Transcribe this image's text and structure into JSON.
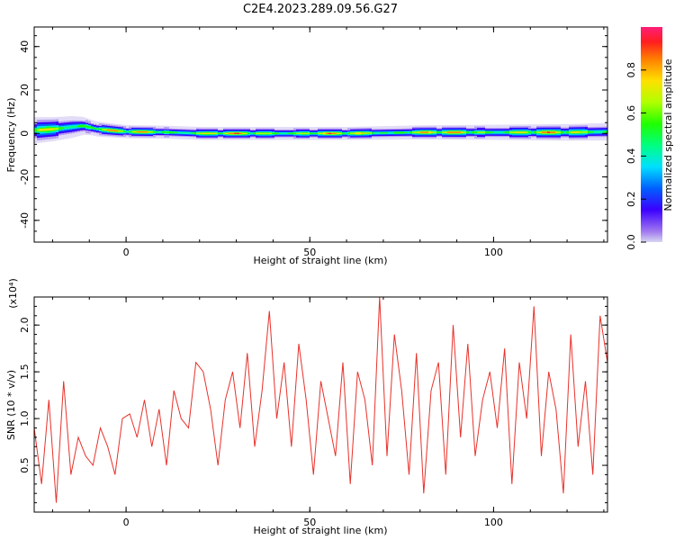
{
  "title": "C2E4.2023.289.09.56.G27",
  "chart_data": [
    {
      "type": "heatmap",
      "xlabel": "Height of straight line (km)",
      "ylabel": "Frequency (Hz)",
      "xlim": [
        -25,
        131
      ],
      "ylim": [
        -50,
        49
      ],
      "xticks": [
        0,
        50,
        100
      ],
      "yticks": [
        -40,
        -20,
        0,
        20,
        40
      ],
      "colorbar": {
        "label": "Normalized spectral amplitude",
        "range": [
          0,
          1
        ],
        "ticks": [
          "0.0",
          "0.2",
          "0.4",
          "0.6",
          "0.8"
        ]
      },
      "ridge": {
        "center_hz": [
          [
            -25,
            1.5
          ],
          [
            -20,
            2
          ],
          [
            -15,
            3
          ],
          [
            -12,
            3.5
          ],
          [
            -8,
            2
          ],
          [
            -3,
            1.2
          ],
          [
            0,
            0.8
          ],
          [
            10,
            0.6
          ],
          [
            20,
            0
          ],
          [
            40,
            0
          ],
          [
            60,
            0
          ],
          [
            80,
            0.5
          ],
          [
            100,
            0.5
          ],
          [
            120,
            0.5
          ],
          [
            131,
            0.8
          ]
        ],
        "half_width_hz": [
          [
            -25,
            6
          ],
          [
            -15,
            5
          ],
          [
            -10,
            3.5
          ],
          [
            0,
            3
          ],
          [
            20,
            3
          ],
          [
            60,
            3
          ],
          [
            100,
            3.5
          ],
          [
            131,
            4
          ]
        ]
      }
    },
    {
      "type": "line",
      "xlabel": "Height of straight line (km)",
      "ylabel": "SNR (10 * v/v)",
      "y_multiplier": "(x10⁴)",
      "xlim": [
        -25,
        131
      ],
      "ylim": [
        0,
        2.3
      ],
      "xticks": [
        0,
        50,
        100
      ],
      "yticks": [
        0.5,
        1.0,
        1.5,
        2.0
      ],
      "color": "#e8312a",
      "x": [
        -25,
        -23,
        -21,
        -19,
        -17,
        -15,
        -13,
        -11,
        -9,
        -7,
        -5,
        -3,
        -1,
        1,
        3,
        5,
        7,
        9,
        11,
        13,
        15,
        17,
        19,
        21,
        23,
        25,
        27,
        29,
        31,
        33,
        35,
        37,
        39,
        41,
        43,
        45,
        47,
        49,
        51,
        53,
        55,
        57,
        59,
        61,
        63,
        65,
        67,
        69,
        71,
        73,
        75,
        77,
        79,
        81,
        83,
        85,
        87,
        89,
        91,
        93,
        95,
        97,
        99,
        101,
        103,
        105,
        107,
        109,
        111,
        113,
        115,
        117,
        119,
        121,
        123,
        125,
        127,
        129,
        131
      ],
      "values": [
        0.9,
        0.3,
        1.2,
        0.1,
        1.4,
        0.4,
        0.8,
        0.6,
        0.5,
        0.9,
        0.7,
        0.4,
        1.0,
        1.05,
        0.8,
        1.2,
        0.7,
        1.1,
        0.5,
        1.3,
        1.0,
        0.9,
        1.6,
        1.5,
        1.1,
        0.5,
        1.2,
        1.5,
        0.9,
        1.7,
        0.7,
        1.3,
        2.15,
        1.0,
        1.6,
        0.7,
        1.8,
        1.2,
        0.4,
        1.4,
        1.0,
        0.6,
        1.6,
        0.3,
        1.5,
        1.2,
        0.5,
        2.3,
        0.6,
        1.9,
        1.3,
        0.4,
        1.7,
        0.2,
        1.3,
        1.6,
        0.4,
        2.0,
        0.8,
        1.8,
        0.6,
        1.2,
        1.5,
        0.9,
        1.75,
        0.3,
        1.6,
        1.0,
        2.2,
        0.6,
        1.5,
        1.1,
        0.2,
        1.9,
        0.7,
        1.4,
        0.4,
        2.1,
        1.6
      ]
    }
  ]
}
